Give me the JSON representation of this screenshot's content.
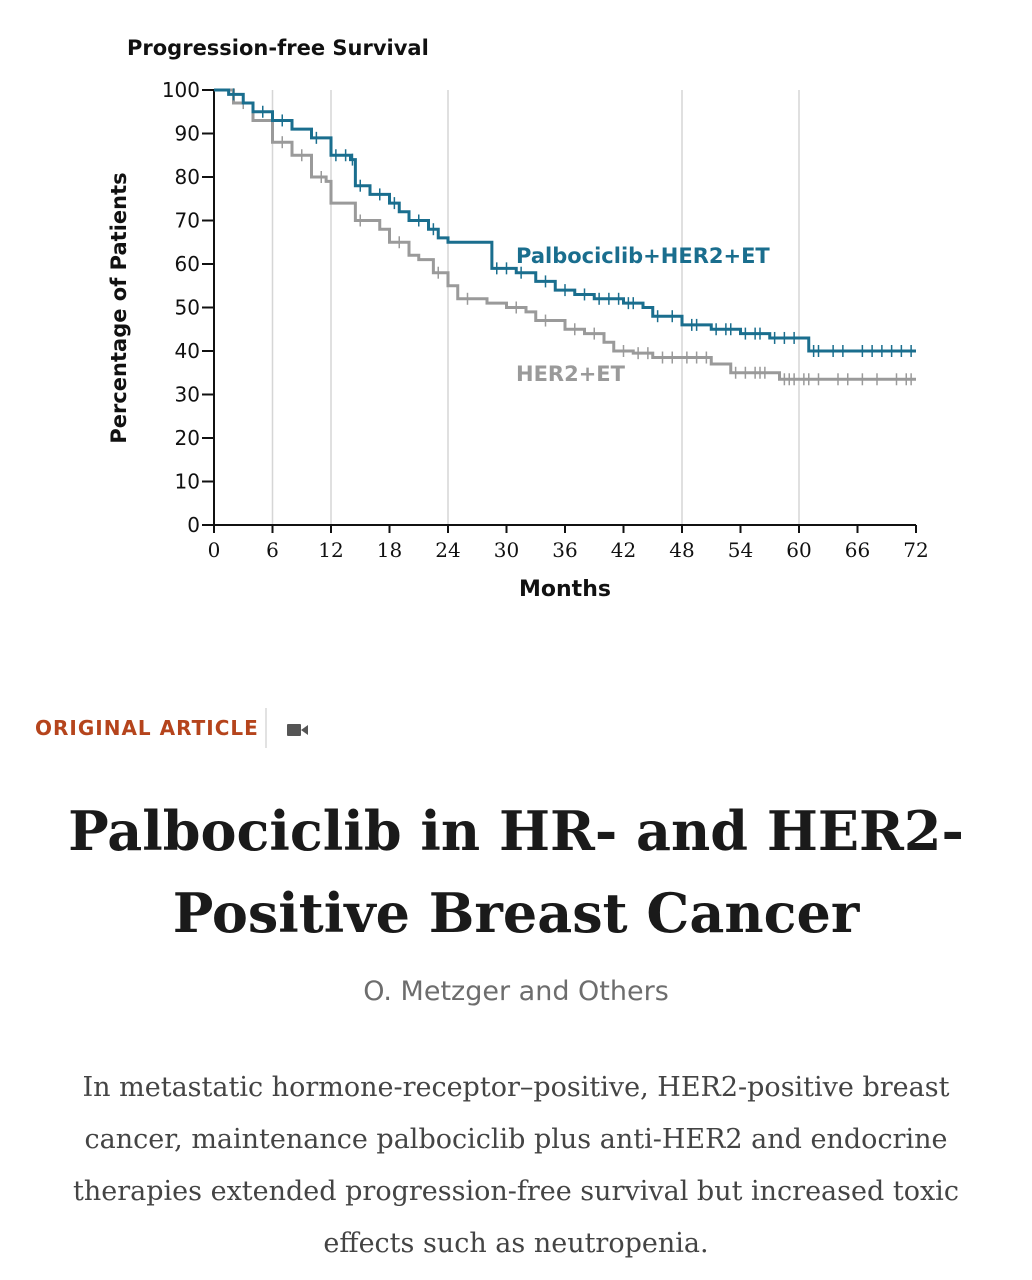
{
  "chart_data": {
    "type": "line",
    "title": "Progression-free Survival",
    "xlabel": "Months",
    "ylabel": "Percentage of Patients",
    "xlim": [
      0,
      72
    ],
    "ylim": [
      0,
      100
    ],
    "xticks": [
      0,
      6,
      12,
      18,
      24,
      30,
      36,
      42,
      48,
      54,
      60,
      66,
      72
    ],
    "yticks": [
      0,
      10,
      20,
      30,
      40,
      50,
      60,
      70,
      80,
      90,
      100
    ],
    "reference_lines_x": [
      6,
      12,
      24,
      48,
      60
    ],
    "step": true,
    "series": [
      {
        "name": "Palbociclib+HER2+ET",
        "color": "#1a6e8e",
        "x": [
          0,
          1.5,
          3,
          4,
          6,
          8,
          10,
          12,
          14,
          14.5,
          16,
          18,
          19,
          20,
          22,
          23,
          24,
          27,
          28.5,
          31,
          33,
          35,
          37,
          39,
          42,
          44,
          45,
          48,
          51,
          54,
          57,
          61,
          72
        ],
        "y": [
          100,
          99,
          97,
          95,
          93,
          91,
          89,
          85,
          84,
          78,
          76,
          74,
          72,
          70,
          68,
          66,
          65,
          65,
          59,
          58,
          56,
          54,
          53,
          52,
          51,
          50,
          48,
          46,
          45,
          44,
          43,
          40,
          40
        ],
        "censored_x": [
          2,
          5,
          7,
          10.5,
          12.5,
          13.5,
          14.2,
          15,
          17,
          18.5,
          21,
          22.5,
          29,
          30,
          31.5,
          34,
          36,
          38,
          39.5,
          40.5,
          41.5,
          42.5,
          43,
          45.5,
          47,
          49,
          49.5,
          51.5,
          52.5,
          53,
          54.5,
          55.5,
          56,
          57.5,
          58.5,
          59.5,
          61.5,
          62,
          63.5,
          64.5,
          66.5,
          67.5,
          68.5,
          69.5,
          70.5,
          71.5
        ]
      },
      {
        "name": "HER2+ET",
        "color": "#9a9a9a",
        "x": [
          0,
          2,
          4,
          6,
          8,
          10,
          11.5,
          12,
          13.5,
          14.5,
          17,
          18,
          20,
          21,
          22.5,
          24,
          25,
          28,
          30,
          32,
          33,
          36,
          38,
          40,
          41,
          43,
          45,
          51,
          53,
          58,
          72
        ],
        "y": [
          100,
          97,
          93,
          88,
          85,
          80,
          79,
          74,
          74,
          70,
          68,
          65,
          62,
          61,
          58,
          55,
          52,
          51,
          50,
          49,
          47,
          45,
          44,
          42,
          40,
          39.5,
          38.5,
          37,
          35,
          33.5,
          33.5
        ],
        "censored_x": [
          3,
          7,
          9,
          11,
          15,
          19,
          23,
          26,
          31,
          34,
          37,
          39,
          42,
          43.5,
          44.5,
          46,
          47,
          48.5,
          49.5,
          50.5,
          53.5,
          54.5,
          55.5,
          56,
          56.5,
          58.5,
          59,
          59.5,
          60.5,
          61,
          62,
          64,
          65,
          66.5,
          68,
          70,
          71,
          71.5
        ]
      }
    ]
  },
  "article": {
    "kicker": "ORIGINAL ARTICLE",
    "media_icon": "video-camera-icon",
    "accent_color": "#b5441c",
    "title_line1": "Palbociclib in HR- and HER2-",
    "title_line2": "Positive Breast Cancer",
    "author": "O. Metzger and Others",
    "summary": "In metastatic hormone-receptor–positive, HER2-positive breast cancer, maintenance palbociclib plus anti-HER2 and endocrine therapies extended progression-free survival but increased toxic effects such as neutropenia."
  }
}
